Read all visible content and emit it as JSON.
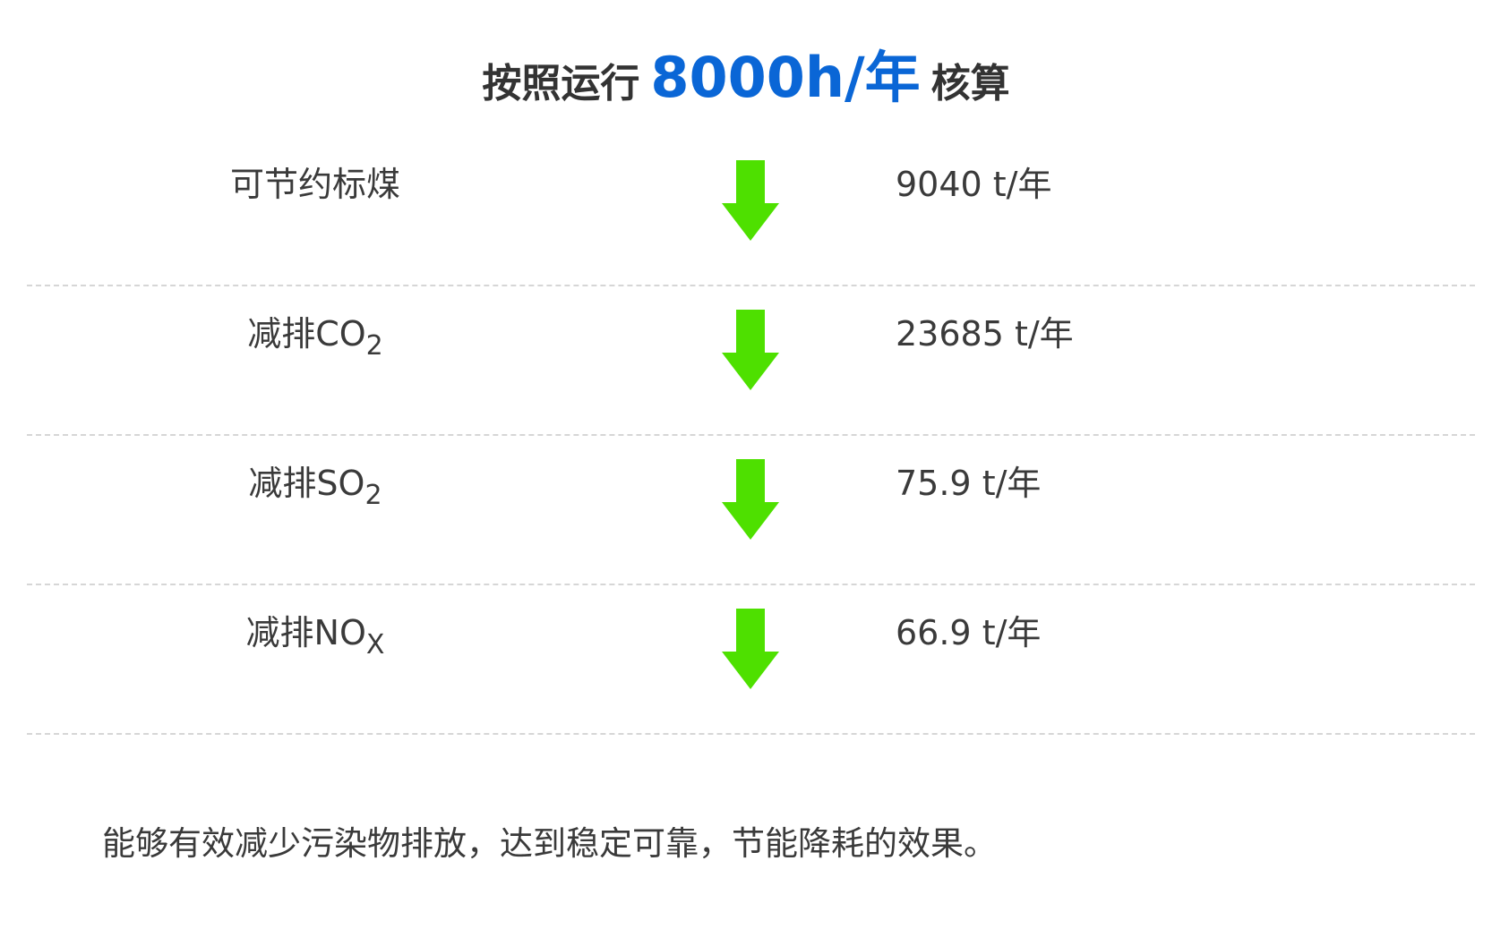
{
  "title": {
    "prefix": "按照运行",
    "highlight": "8000h/年",
    "suffix": "核算",
    "highlight_color": "#0a66d6"
  },
  "rows": [
    {
      "label": "可节约标煤",
      "sub": "",
      "value": "9040 t/年",
      "icon": "arrow-down-icon"
    },
    {
      "label": "减排CO",
      "sub": "2",
      "value": "23685 t/年",
      "icon": "arrow-down-icon"
    },
    {
      "label": "减排SO",
      "sub": "2",
      "value": "75.9 t/年",
      "icon": "arrow-down-icon"
    },
    {
      "label": "减排NO",
      "sub": "X",
      "value": "66.9 t/年",
      "icon": "arrow-down-icon"
    }
  ],
  "arrow_color": "#4ee000",
  "footer": "能够有效减少污染物排放，达到稳定可靠，节能降耗的效果。"
}
